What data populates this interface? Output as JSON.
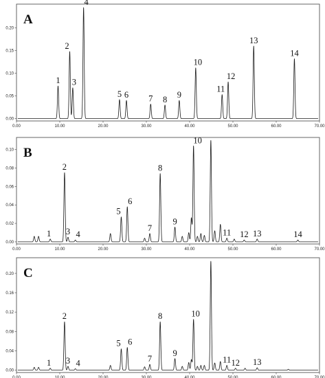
{
  "chart_data": [
    {
      "panel": "A",
      "type": "line",
      "xlim": [
        0,
        70
      ],
      "ylim": [
        0,
        0.25
      ],
      "xticks": [
        "0.00",
        "10.00",
        "20.00",
        "30.00",
        "40.00",
        "50.00",
        "60.00",
        "70.00"
      ],
      "yticks": [
        "0.00",
        "0.05",
        "0.10",
        "0.15",
        "0.20"
      ],
      "peaks": [
        {
          "label": "1",
          "x": 9.6,
          "y": 0.072
        },
        {
          "label": "2",
          "x": 12.3,
          "y": 0.148
        },
        {
          "label": "3",
          "x": 13.0,
          "y": 0.068
        },
        {
          "label": "4",
          "x": 15.5,
          "y": 0.245
        },
        {
          "label": "5",
          "x": 23.8,
          "y": 0.042
        },
        {
          "label": "6",
          "x": 25.4,
          "y": 0.04
        },
        {
          "label": "7",
          "x": 31.0,
          "y": 0.032
        },
        {
          "label": "8",
          "x": 34.3,
          "y": 0.03
        },
        {
          "label": "9",
          "x": 37.6,
          "y": 0.04
        },
        {
          "label": "10",
          "x": 41.4,
          "y": 0.112
        },
        {
          "label": "11",
          "x": 47.5,
          "y": 0.053
        },
        {
          "label": "12",
          "x": 48.9,
          "y": 0.081
        },
        {
          "label": "13",
          "x": 54.8,
          "y": 0.16
        },
        {
          "label": "14",
          "x": 64.2,
          "y": 0.132
        }
      ],
      "minor_peaks": []
    },
    {
      "panel": "B",
      "type": "line",
      "xlim": [
        0,
        70
      ],
      "ylim": [
        0,
        0.112
      ],
      "xticks": [
        "0.00",
        "10.00",
        "20.00",
        "30.00",
        "40.00",
        "50.00",
        "60.00",
        "70.00"
      ],
      "yticks": [
        "0.00",
        "0.02",
        "0.04",
        "0.06",
        "0.08",
        "0.10"
      ],
      "peaks": [
        {
          "label": "1",
          "x": 7.8,
          "y": 0.003
        },
        {
          "label": "2",
          "x": 11.1,
          "y": 0.075
        },
        {
          "label": "3",
          "x": 11.9,
          "y": 0.005
        },
        {
          "label": "4",
          "x": 13.6,
          "y": 0.002
        },
        {
          "label": "5",
          "x": 24.2,
          "y": 0.027
        },
        {
          "label": "6",
          "x": 25.6,
          "y": 0.038
        },
        {
          "label": "7",
          "x": 30.8,
          "y": 0.009
        },
        {
          "label": "8",
          "x": 33.2,
          "y": 0.074
        },
        {
          "label": "9",
          "x": 36.6,
          "y": 0.016
        },
        {
          "label": "10",
          "x": 40.9,
          "y": 0.104
        },
        {
          "label": "11",
          "x": 48.6,
          "y": 0.004
        },
        {
          "label": "12",
          "x": 52.6,
          "y": 0.002
        },
        {
          "label": "13",
          "x": 55.6,
          "y": 0.003
        },
        {
          "label": "14",
          "x": 65.0,
          "y": 0.002
        }
      ],
      "minor_peaks": [
        {
          "x": 4.1,
          "y": 0.006
        },
        {
          "x": 5.1,
          "y": 0.006
        },
        {
          "x": 21.7,
          "y": 0.009
        },
        {
          "x": 29.6,
          "y": 0.004
        },
        {
          "x": 38.3,
          "y": 0.006
        },
        {
          "x": 39.8,
          "y": 0.01
        },
        {
          "x": 40.4,
          "y": 0.026
        },
        {
          "x": 41.8,
          "y": 0.006
        },
        {
          "x": 42.6,
          "y": 0.009
        },
        {
          "x": 43.4,
          "y": 0.007
        },
        {
          "x": 44.9,
          "y": 0.11
        },
        {
          "x": 45.8,
          "y": 0.012
        },
        {
          "x": 47.1,
          "y": 0.019
        },
        {
          "x": 50.3,
          "y": 0.003
        }
      ]
    },
    {
      "panel": "C",
      "type": "line",
      "xlim": [
        0,
        70
      ],
      "ylim": [
        0,
        0.23
      ],
      "xticks": [
        "0.00",
        "10.00",
        "20.00",
        "30.00",
        "40.00",
        "50.00",
        "60.00",
        "70.00"
      ],
      "yticks": [
        "0.00",
        "0.04",
        "0.08",
        "0.12",
        "0.16",
        "0.20"
      ],
      "peaks": [
        {
          "label": "1",
          "x": 7.8,
          "y": 0.004
        },
        {
          "label": "2",
          "x": 11.1,
          "y": 0.1
        },
        {
          "label": "3",
          "x": 11.9,
          "y": 0.008
        },
        {
          "label": "4",
          "x": 13.6,
          "y": 0.003
        },
        {
          "label": "5",
          "x": 24.2,
          "y": 0.044
        },
        {
          "label": "6",
          "x": 25.6,
          "y": 0.047
        },
        {
          "label": "7",
          "x": 30.8,
          "y": 0.012
        },
        {
          "label": "8",
          "x": 33.2,
          "y": 0.1
        },
        {
          "label": "9",
          "x": 36.6,
          "y": 0.024
        },
        {
          "label": "10",
          "x": 40.9,
          "y": 0.105
        },
        {
          "label": "11",
          "x": 48.6,
          "y": 0.01
        },
        {
          "label": "12",
          "x": 50.6,
          "y": 0.004
        },
        {
          "label": "13",
          "x": 55.6,
          "y": 0.005
        }
      ],
      "minor_peaks": [
        {
          "x": 4.1,
          "y": 0.006
        },
        {
          "x": 5.1,
          "y": 0.006
        },
        {
          "x": 21.7,
          "y": 0.01
        },
        {
          "x": 29.6,
          "y": 0.007
        },
        {
          "x": 38.3,
          "y": 0.008
        },
        {
          "x": 39.8,
          "y": 0.016
        },
        {
          "x": 40.4,
          "y": 0.022
        },
        {
          "x": 41.8,
          "y": 0.008
        },
        {
          "x": 42.6,
          "y": 0.01
        },
        {
          "x": 43.4,
          "y": 0.01
        },
        {
          "x": 44.9,
          "y": 0.225
        },
        {
          "x": 45.8,
          "y": 0.015
        },
        {
          "x": 47.1,
          "y": 0.018
        },
        {
          "x": 52.8,
          "y": 0.004
        },
        {
          "x": 62.8,
          "y": 0.002
        }
      ]
    }
  ]
}
